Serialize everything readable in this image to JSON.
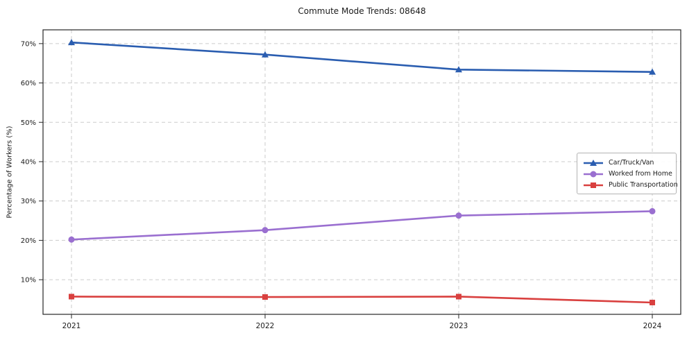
{
  "figure": {
    "title": "Commute Mode Trends: 08648",
    "ylabel": "Percentage of Workers (%)"
  },
  "chart_data": {
    "type": "line",
    "title": "Commute Mode Trends: 08648",
    "xlabel": "",
    "ylabel": "Percentage of Workers (%)",
    "x": [
      2021,
      2022,
      2023,
      2024
    ],
    "xtick_labels": [
      "2021",
      "2022",
      "2023",
      "2024"
    ],
    "ytick_values": [
      10,
      20,
      30,
      40,
      50,
      60,
      70
    ],
    "ytick_labels": [
      "10%",
      "20%",
      "30%",
      "40%",
      "50%",
      "60%",
      "70%"
    ],
    "ylim": [
      1.2,
      73.5
    ],
    "grid": "dashed-both-axes",
    "legend_position": "center-right",
    "series": [
      {
        "name": "Car/Truck/Van",
        "color": "#2a5db0",
        "marker": "triangle",
        "values": [
          70.3,
          67.2,
          63.4,
          62.8
        ]
      },
      {
        "name": "Worked from Home",
        "color": "#9a6fd0",
        "marker": "circle",
        "values": [
          20.2,
          22.6,
          26.3,
          27.4
        ]
      },
      {
        "name": "Public Transportation",
        "color": "#d9403f",
        "marker": "square",
        "values": [
          5.7,
          5.6,
          5.7,
          4.2
        ]
      }
    ],
    "colors": {
      "grid": "#cbcbcb",
      "axis": "#262626",
      "text": "#1a1a1a"
    }
  }
}
